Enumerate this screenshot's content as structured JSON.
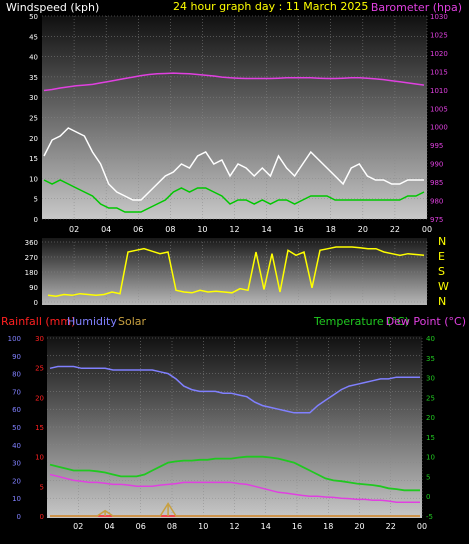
{
  "header": {
    "wind_label": "Windspeed (kph)",
    "title": "24 hour graph day : 11 March 2025",
    "baro_label": "Barometer (hpa)"
  },
  "bottom_labels": {
    "rain": "Rainfall (mm)",
    "humidity": "Humidity",
    "solar": "Solar",
    "temp": "Temperature (°C)",
    "dew": "Dew Point (°C)"
  },
  "colors": {
    "gust": "#ffffff",
    "avg_wind": "#00c800",
    "baro": "#e040e0",
    "direction": "#ffff00",
    "rain": "#ff2020",
    "humidity": "#8080ff",
    "solar": "#c8a040",
    "temp": "#20c820",
    "dew": "#e040e0"
  },
  "chart_data": [
    {
      "type": "line",
      "x_ticks": [
        "02",
        "04",
        "06",
        "08",
        "10",
        "12",
        "14",
        "16",
        "18",
        "20",
        "22",
        "00"
      ],
      "y_left_ticks": [
        "0",
        "5",
        "10",
        "15",
        "20",
        "25",
        "30",
        "35",
        "40",
        "45",
        "50"
      ],
      "y_right_ticks": [
        "975",
        "980",
        "985",
        "990",
        "995",
        "1000",
        "1005",
        "1010",
        "1015",
        "1020",
        "1025",
        "1030"
      ],
      "ylim_left": [
        0,
        50
      ],
      "ylim_right": [
        975,
        1030
      ],
      "series": [
        {
          "name": "Windspeed (kph)",
          "role": "gust",
          "values": [
            15,
            19,
            20,
            22,
            21,
            20,
            16,
            13,
            8,
            6,
            5,
            4,
            4,
            6,
            8,
            10,
            11,
            13,
            12,
            15,
            16,
            13,
            14,
            10,
            13,
            12,
            10,
            12,
            10,
            15,
            12,
            10,
            13,
            16,
            14,
            12,
            10,
            8,
            12,
            13,
            10,
            9,
            9,
            8,
            8,
            9,
            9,
            9
          ]
        },
        {
          "name": "",
          "role": "average",
          "values": [
            9,
            8,
            9,
            8,
            7,
            6,
            5,
            3,
            2,
            2,
            1,
            1,
            1,
            2,
            3,
            4,
            6,
            7,
            6,
            7,
            7,
            6,
            5,
            3,
            4,
            4,
            3,
            4,
            3,
            4,
            4,
            3,
            4,
            5,
            5,
            5,
            4,
            4,
            4,
            4,
            4,
            4,
            4,
            4,
            4,
            5,
            5,
            6
          ]
        },
        {
          "name": "Barometer (hpa)",
          "role": "barometer",
          "values": [
            1009.5,
            1009.8,
            1010.2,
            1010.5,
            1010.8,
            1011.0,
            1011.2,
            1011.6,
            1012.0,
            1012.4,
            1012.8,
            1013.2,
            1013.6,
            1013.9,
            1014.1,
            1014.2,
            1014.3,
            1014.2,
            1014.1,
            1013.9,
            1013.7,
            1013.5,
            1013.2,
            1013.0,
            1012.9,
            1012.8,
            1012.8,
            1012.8,
            1012.8,
            1012.9,
            1013.0,
            1013.0,
            1013.0,
            1013.0,
            1012.9,
            1012.8,
            1012.8,
            1012.9,
            1013.0,
            1013.0,
            1012.9,
            1012.7,
            1012.5,
            1012.2,
            1011.9,
            1011.6,
            1011.3,
            1011.0
          ]
        }
      ]
    },
    {
      "type": "line",
      "x_ticks": [
        "02",
        "04",
        "06",
        "08",
        "10",
        "12",
        "14",
        "16",
        "18",
        "20",
        "22",
        "00"
      ],
      "y_left_ticks": [
        "0",
        "90",
        "180",
        "270",
        "360"
      ],
      "y_right_ticks": [
        "N",
        "W",
        "S",
        "E",
        "N"
      ],
      "ylim_left": [
        0,
        360
      ],
      "series": [
        {
          "name": "direction",
          "values": [
            40,
            35,
            45,
            40,
            50,
            45,
            40,
            45,
            60,
            50,
            300,
            310,
            320,
            305,
            290,
            300,
            70,
            60,
            55,
            70,
            60,
            65,
            60,
            55,
            80,
            70,
            300,
            75,
            290,
            60,
            310,
            280,
            300,
            85,
            310,
            320,
            330,
            330,
            330,
            325,
            320,
            320,
            300,
            290,
            280,
            290,
            285,
            280
          ]
        }
      ]
    },
    {
      "type": "line",
      "x_ticks": [
        "02",
        "04",
        "06",
        "08",
        "10",
        "12",
        "14",
        "16",
        "18",
        "20",
        "22",
        "00"
      ],
      "y_left_ticks": [
        "0",
        "10",
        "20",
        "30",
        "40",
        "50",
        "60",
        "70",
        "80",
        "90",
        "100"
      ],
      "y_rain_ticks": [
        "0",
        "5",
        "10",
        "15",
        "20",
        "25",
        "30"
      ],
      "y_right_ticks": [
        "-5",
        "0",
        "5",
        "10",
        "15",
        "20",
        "25",
        "30",
        "35",
        "40"
      ],
      "ylim_humidity": [
        0,
        100
      ],
      "ylim_rain": [
        0,
        30
      ],
      "ylim_temp": [
        -5,
        40
      ],
      "series": [
        {
          "name": "Humidity",
          "values": [
            83,
            84,
            84,
            84,
            83,
            83,
            83,
            83,
            82,
            82,
            82,
            82,
            82,
            82,
            81,
            80,
            77,
            73,
            71,
            70,
            70,
            70,
            69,
            69,
            68,
            67,
            64,
            62,
            61,
            60,
            59,
            58,
            58,
            58,
            62,
            65,
            68,
            71,
            73,
            74,
            75,
            76,
            77,
            77,
            78,
            78,
            78,
            78
          ]
        },
        {
          "name": "Temperature (°C)",
          "values": [
            8.0,
            7.5,
            7.0,
            6.5,
            6.5,
            6.5,
            6.3,
            6.0,
            5.5,
            5.0,
            5.0,
            5.0,
            5.5,
            6.5,
            7.5,
            8.5,
            8.8,
            9.0,
            9.0,
            9.2,
            9.2,
            9.5,
            9.5,
            9.5,
            9.8,
            10.0,
            10.0,
            10.0,
            9.8,
            9.5,
            9.0,
            8.5,
            7.5,
            6.5,
            5.5,
            4.5,
            4.0,
            3.8,
            3.5,
            3.2,
            3.0,
            2.8,
            2.5,
            2.0,
            1.8,
            1.5,
            1.5,
            1.5
          ]
        },
        {
          "name": "Dew Point (°C)",
          "values": [
            5.5,
            5.0,
            4.5,
            4.0,
            3.8,
            3.5,
            3.5,
            3.3,
            3.0,
            3.0,
            2.8,
            2.5,
            2.5,
            2.5,
            2.8,
            3.0,
            3.2,
            3.5,
            3.5,
            3.5,
            3.5,
            3.5,
            3.5,
            3.5,
            3.2,
            3.0,
            2.5,
            2.0,
            1.5,
            1.0,
            0.8,
            0.5,
            0.2,
            0.0,
            0.0,
            -0.2,
            -0.3,
            -0.5,
            -0.6,
            -0.8,
            -0.8,
            -1.0,
            -1.0,
            -1.2,
            -1.5,
            -1.5,
            -1.5,
            -1.5
          ]
        },
        {
          "name": "Rainfall (mm)",
          "values": [
            0,
            0,
            0,
            0,
            0,
            0,
            0,
            0,
            0,
            0,
            0,
            0,
            0,
            0,
            0,
            0,
            0,
            0,
            0,
            0,
            0,
            0,
            0,
            0,
            0,
            0,
            0,
            0,
            0,
            0,
            0,
            0,
            0,
            0,
            0,
            0,
            0,
            0,
            0,
            0,
            0,
            0,
            0,
            0,
            0,
            0,
            0,
            0
          ]
        },
        {
          "name": "Solar",
          "values": [
            0,
            0,
            0,
            0,
            0,
            0,
            0,
            3,
            0,
            0,
            0,
            0,
            0,
            0,
            0,
            7,
            0,
            0,
            0,
            0,
            0,
            0,
            0,
            0,
            0,
            0,
            0,
            0,
            0,
            0,
            0,
            0,
            0,
            0,
            0,
            0,
            0,
            0,
            0,
            0,
            0,
            0,
            0,
            0,
            0,
            0,
            0,
            0
          ]
        }
      ]
    }
  ]
}
